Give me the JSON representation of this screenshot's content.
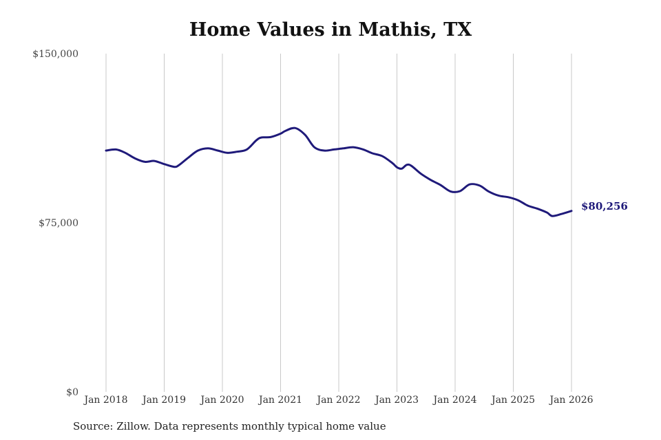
{
  "chart_data": {
    "type": "line",
    "title": "Home Values in Mathis, TX",
    "xlabel": "",
    "ylabel": "",
    "ylim": [
      0,
      150000
    ],
    "xlim": [
      2018,
      2026
    ],
    "y_ticks": [
      {
        "value": 0,
        "label": "$0"
      },
      {
        "value": 75000,
        "label": "$75,000"
      },
      {
        "value": 150000,
        "label": "$150,000"
      }
    ],
    "x_ticks": [
      {
        "value": 2018,
        "label": "Jan 2018"
      },
      {
        "value": 2019,
        "label": "Jan 2019"
      },
      {
        "value": 2020,
        "label": "Jan 2020"
      },
      {
        "value": 2021,
        "label": "Jan 2021"
      },
      {
        "value": 2022,
        "label": "Jan 2022"
      },
      {
        "value": 2023,
        "label": "Jan 2023"
      },
      {
        "value": 2024,
        "label": "Jan 2024"
      },
      {
        "value": 2025,
        "label": "Jan 2025"
      },
      {
        "value": 2026,
        "label": "Jan 2026"
      }
    ],
    "series": [
      {
        "name": "Typical home value",
        "color": "#1f1a7a",
        "x": [
          2018.0,
          2018.17,
          2018.33,
          2018.5,
          2018.67,
          2018.83,
          2019.0,
          2019.17,
          2019.25,
          2019.42,
          2019.58,
          2019.75,
          2019.92,
          2020.08,
          2020.25,
          2020.42,
          2020.58,
          2020.67,
          2020.83,
          2021.0,
          2021.08,
          2021.25,
          2021.42,
          2021.58,
          2021.75,
          2021.92,
          2022.08,
          2022.25,
          2022.42,
          2022.58,
          2022.75,
          2022.92,
          2023.0,
          2023.08,
          2023.17,
          2023.25,
          2023.42,
          2023.58,
          2023.75,
          2023.92,
          2024.08,
          2024.25,
          2024.42,
          2024.58,
          2024.75,
          2024.92,
          2025.08,
          2025.25,
          2025.42,
          2025.58,
          2025.67,
          2025.83,
          2026.0
        ],
        "values": [
          107000,
          107500,
          106000,
          103500,
          102000,
          102400,
          101000,
          99800,
          100500,
          104000,
          107000,
          108000,
          107000,
          106000,
          106500,
          107500,
          111500,
          112800,
          113000,
          114500,
          115700,
          117000,
          114000,
          108500,
          107000,
          107500,
          108000,
          108500,
          107500,
          105800,
          104500,
          101500,
          99600,
          99000,
          100700,
          100200,
          96600,
          94000,
          91700,
          88900,
          89000,
          92000,
          91500,
          88800,
          87000,
          86300,
          85000,
          82600,
          81200,
          79500,
          78000,
          78900,
          80256
        ]
      }
    ],
    "end_label": "$80,256"
  },
  "footer": {
    "source": "Source: Zillow. Data represents monthly typical home value"
  }
}
